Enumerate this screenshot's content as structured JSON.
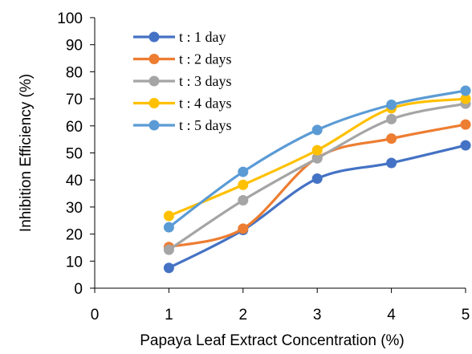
{
  "chart_data": {
    "type": "line",
    "title": "",
    "xlabel": "Papaya Leaf Extract Concentration (%)",
    "ylabel": "Inhibition Efficiency (%)",
    "xlim": [
      0,
      5
    ],
    "ylim": [
      0,
      100
    ],
    "x_ticks": [
      "0",
      "1",
      "2",
      "3",
      "4",
      "5"
    ],
    "y_ticks": [
      "0",
      "10",
      "20",
      "30",
      "40",
      "50",
      "60",
      "70",
      "80",
      "90",
      "100"
    ],
    "grid": false,
    "legend_position": "top-left",
    "x": [
      1,
      2,
      3,
      4,
      5
    ],
    "series": [
      {
        "name": "t : 1 day",
        "color": "#4472C4",
        "values": [
          7.5,
          21.5,
          40.5,
          46.3,
          52.8
        ]
      },
      {
        "name": "t : 2 days",
        "color": "#ED7D31",
        "values": [
          15.2,
          22.0,
          48.2,
          55.3,
          60.5
        ]
      },
      {
        "name": "t : 3 days",
        "color": "#A5A5A5",
        "values": [
          14.2,
          32.5,
          48.0,
          62.5,
          68.2
        ]
      },
      {
        "name": "t : 4 days",
        "color": "#FFC000",
        "values": [
          26.7,
          38.2,
          51.0,
          66.5,
          70.0
        ]
      },
      {
        "name": "t : 5 days",
        "color": "#5B9BD5",
        "values": [
          22.5,
          43.0,
          58.5,
          67.8,
          73.0
        ]
      }
    ]
  }
}
